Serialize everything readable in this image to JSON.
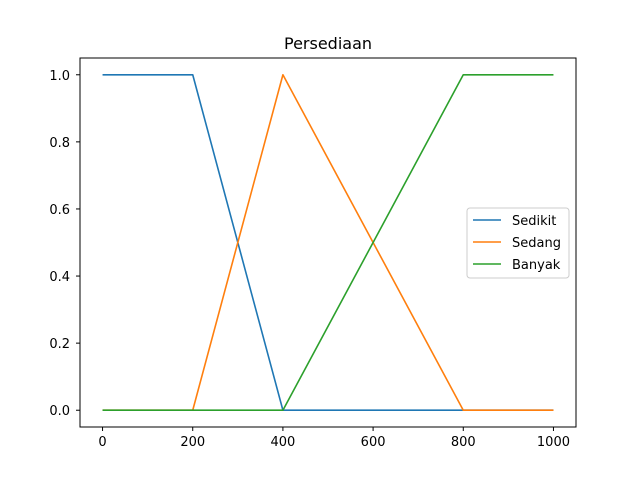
{
  "chart_data": {
    "type": "line",
    "title": "Persediaan",
    "xlim": [
      -50,
      1050
    ],
    "ylim": [
      -0.05,
      1.05
    ],
    "xticks": [
      0,
      200,
      400,
      600,
      800,
      1000
    ],
    "yticks": [
      0.0,
      0.2,
      0.4,
      0.6,
      0.8,
      1.0
    ],
    "xtick_labels": [
      "0",
      "200",
      "400",
      "600",
      "800",
      "1000"
    ],
    "ytick_labels": [
      "0.0",
      "0.2",
      "0.4",
      "0.6",
      "0.8",
      "1.0"
    ],
    "legend_position": "center-right",
    "series": [
      {
        "name": "Sedikit",
        "color": "#1f77b4",
        "x": [
          0,
          200,
          400,
          1000
        ],
        "y": [
          1,
          1,
          0,
          0
        ]
      },
      {
        "name": "Sedang",
        "color": "#ff7f0e",
        "x": [
          0,
          200,
          400,
          800,
          1000
        ],
        "y": [
          0,
          0,
          1,
          0,
          0
        ]
      },
      {
        "name": "Banyak",
        "color": "#2ca02c",
        "x": [
          0,
          400,
          800,
          1000
        ],
        "y": [
          0,
          0,
          1,
          1
        ]
      }
    ]
  }
}
